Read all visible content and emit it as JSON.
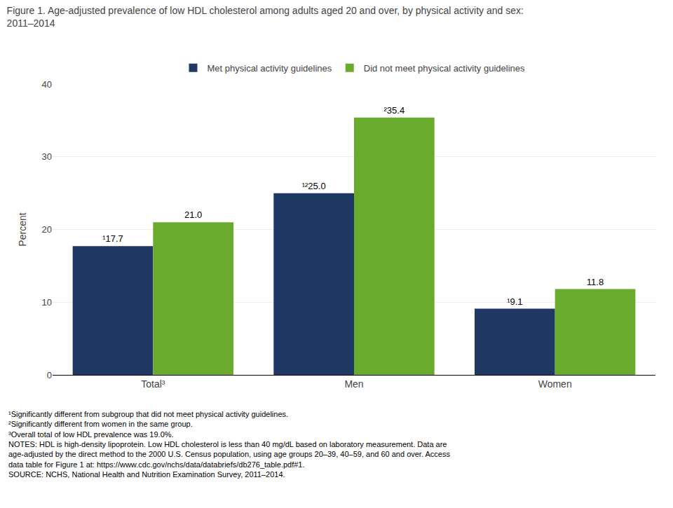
{
  "chart_data": {
    "type": "bar",
    "title": "Figure 1. Age-adjusted prevalence of low HDL cholesterol among adults aged 20 and over, by physical activity and sex:",
    "subtitle": "2011–2014",
    "categories": [
      "Total³",
      "Men",
      "Women"
    ],
    "series": [
      {
        "name": "Met physical activity guidelines",
        "color": "#1F3864",
        "values": [
          17.7,
          25.0,
          9.1
        ],
        "value_labels": [
          "¹17.7",
          "¹²25.0",
          "¹9.1"
        ]
      },
      {
        "name": "Did not meet physical activity guidelines",
        "color": "#6AAB2E",
        "values": [
          21.0,
          35.4,
          11.8
        ],
        "value_labels": [
          "21.0",
          "²35.4",
          "11.8"
        ]
      }
    ],
    "ylabel": "Percent",
    "ylim": [
      0,
      40
    ],
    "yticks": [
      0,
      10,
      20,
      30,
      40
    ],
    "grid": true,
    "legend": "top",
    "data_labels": true,
    "annotations": [
      "¹Significantly different from subgroup that did not meet physical activity guidelines.",
      "²Significantly different from women in the same group.",
      "³Overall total of low HDL prevalence was 19.0%.",
      "NOTES: HDL is high-density lipoprotein. Low HDL cholesterol is less than 40 mg/dL based on laboratory measurement. Data are",
      "age-adjusted by the direct method to the 2000 U.S. Census population, using age groups 20–39, 40–59, and 60 and over. Access",
      "data table for Figure 1 at: https://www.cdc.gov/nchs/data/databriefs/db276_table.pdf#1.",
      "SOURCE: NCHS, National Health and Nutrition Examination Survey, 2011–2014."
    ]
  }
}
